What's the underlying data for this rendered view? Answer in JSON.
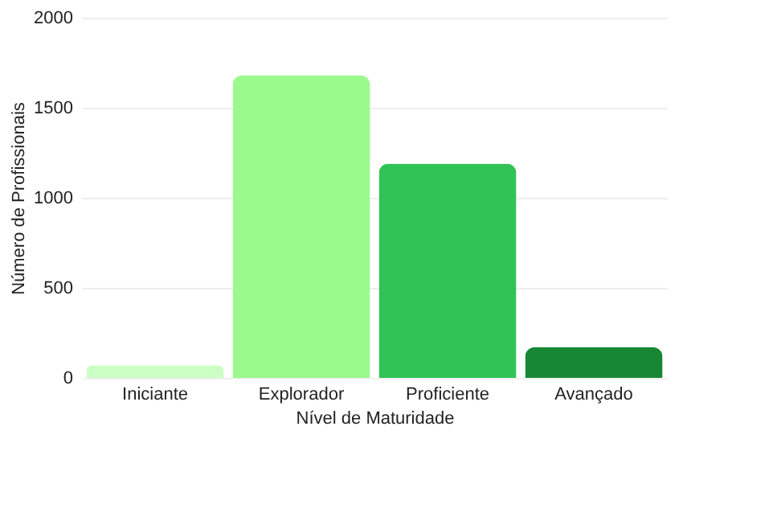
{
  "chart_data": {
    "type": "bar",
    "xlabel": "Nível de Maturidade",
    "ylabel": "Número de Profissionais",
    "categories": [
      "Iniciante",
      "Explorador",
      "Proficiente",
      "Avançado"
    ],
    "values": [
      70,
      1680,
      1190,
      170
    ],
    "colors": [
      "#ccffc4",
      "#9afa8c",
      "#31c356",
      "#178734"
    ],
    "ylim": [
      0,
      2000
    ],
    "yticks": [
      0,
      500,
      1000,
      1500,
      2000
    ],
    "grid": "y"
  }
}
